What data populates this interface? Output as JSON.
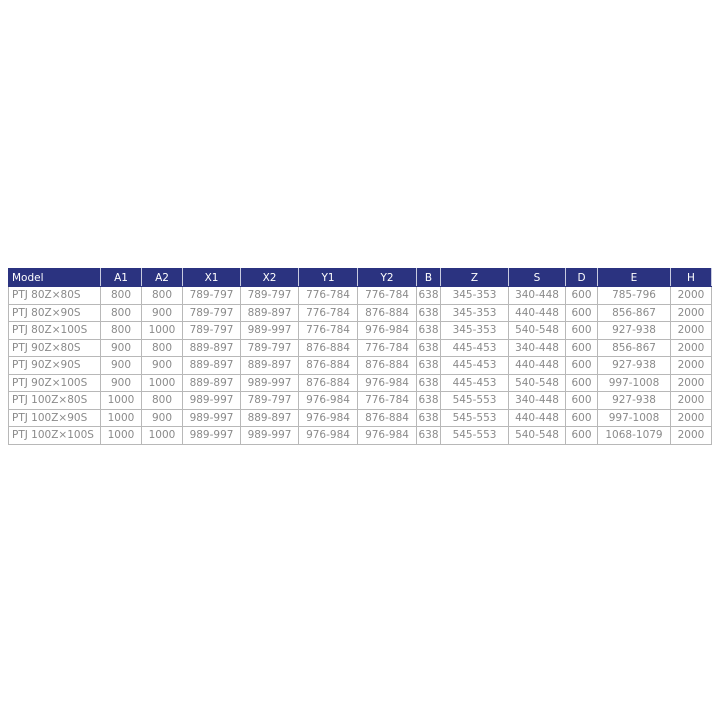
{
  "table": {
    "header_color": "#2b3380",
    "columns": [
      "Model",
      "A1",
      "A2",
      "X1",
      "X2",
      "Y1",
      "Y2",
      "B",
      "Z",
      "S",
      "D",
      "E",
      "H"
    ],
    "rows": [
      [
        "PTJ 80Z×80S",
        "800",
        "800",
        "789-797",
        "789-797",
        "776-784",
        "776-784",
        "638",
        "345-353",
        "340-448",
        "600",
        "785-796",
        "2000"
      ],
      [
        "PTJ 80Z×90S",
        "800",
        "900",
        "789-797",
        "889-897",
        "776-784",
        "876-884",
        "638",
        "345-353",
        "440-448",
        "600",
        "856-867",
        "2000"
      ],
      [
        "PTJ 80Z×100S",
        "800",
        "1000",
        "789-797",
        "989-997",
        "776-784",
        "976-984",
        "638",
        "345-353",
        "540-548",
        "600",
        "927-938",
        "2000"
      ],
      [
        "PTJ 90Z×80S",
        "900",
        "800",
        "889-897",
        "789-797",
        "876-884",
        "776-784",
        "638",
        "445-453",
        "340-448",
        "600",
        "856-867",
        "2000"
      ],
      [
        "PTJ 90Z×90S",
        "900",
        "900",
        "889-897",
        "889-897",
        "876-884",
        "876-884",
        "638",
        "445-453",
        "440-448",
        "600",
        "927-938",
        "2000"
      ],
      [
        "PTJ 90Z×100S",
        "900",
        "1000",
        "889-897",
        "989-997",
        "876-884",
        "976-984",
        "638",
        "445-453",
        "540-548",
        "600",
        "997-1008",
        "2000"
      ],
      [
        "PTJ 100Z×80S",
        "1000",
        "800",
        "989-997",
        "789-797",
        "976-984",
        "776-784",
        "638",
        "545-553",
        "340-448",
        "600",
        "927-938",
        "2000"
      ],
      [
        "PTJ 100Z×90S",
        "1000",
        "900",
        "989-997",
        "889-897",
        "976-984",
        "876-884",
        "638",
        "545-553",
        "440-448",
        "600",
        "997-1008",
        "2000"
      ],
      [
        "PTJ 100Z×100S",
        "1000",
        "1000",
        "989-997",
        "989-997",
        "976-984",
        "976-984",
        "638",
        "545-553",
        "540-548",
        "600",
        "1068-1079",
        "2000"
      ]
    ]
  }
}
